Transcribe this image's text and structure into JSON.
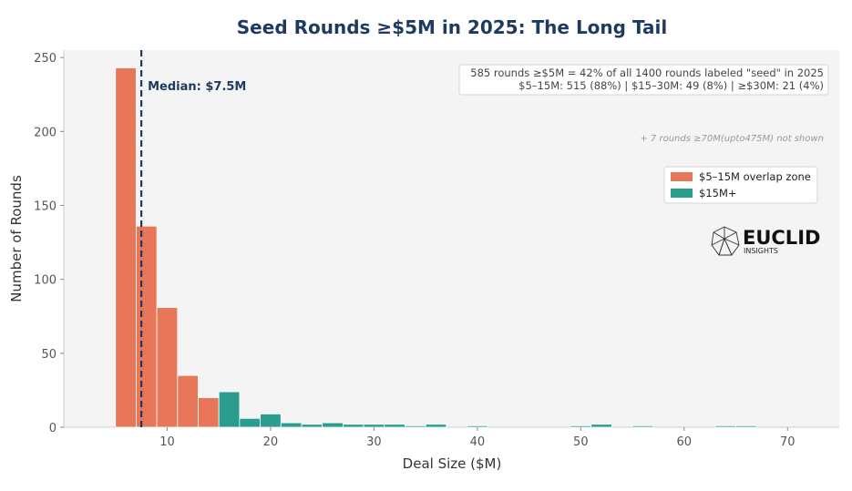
{
  "chart_data": {
    "type": "bar",
    "title": "Seed Rounds ≥$5M in 2025: The Long Tail",
    "xlabel": "Deal Size ($M)",
    "ylabel": "Number of Rounds",
    "xlim": [
      0,
      75
    ],
    "ylim": [
      0,
      255
    ],
    "xticks": [
      10,
      20,
      30,
      40,
      50,
      60,
      70
    ],
    "yticks": [
      0,
      50,
      100,
      150,
      200,
      250
    ],
    "bin_width": 2,
    "series": [
      {
        "name": "$5–15M overlap zone",
        "color": "#e8775a",
        "bins": [
          {
            "x0": 5,
            "count": 243
          },
          {
            "x0": 7,
            "count": 136
          },
          {
            "x0": 9,
            "count": 81
          },
          {
            "x0": 11,
            "count": 35
          },
          {
            "x0": 13,
            "count": 20
          }
        ]
      },
      {
        "name": "$15M+",
        "color": "#2a9d8f",
        "bins": [
          {
            "x0": 15,
            "count": 24
          },
          {
            "x0": 17,
            "count": 6
          },
          {
            "x0": 19,
            "count": 9
          },
          {
            "x0": 21,
            "count": 3
          },
          {
            "x0": 23,
            "count": 2
          },
          {
            "x0": 25,
            "count": 3
          },
          {
            "x0": 27,
            "count": 2
          },
          {
            "x0": 29,
            "count": 2
          },
          {
            "x0": 31,
            "count": 2
          },
          {
            "x0": 33,
            "count": 1
          },
          {
            "x0": 35,
            "count": 2
          },
          {
            "x0": 39,
            "count": 1
          },
          {
            "x0": 49,
            "count": 1
          },
          {
            "x0": 51,
            "count": 2
          },
          {
            "x0": 55,
            "count": 1
          },
          {
            "x0": 63,
            "count": 1
          },
          {
            "x0": 65,
            "count": 1
          }
        ]
      }
    ],
    "median": {
      "value": 7.5,
      "label": "Median: $7.5M",
      "color": "#1f3a5f"
    },
    "annotations": {
      "stats_line1": "585 rounds ≥$5M = 42% of all 1400 rounds labeled \"seed\" in 2025",
      "stats_line2": "$5–15M: 515 (88%)  |  $15–30M: 49 (8%)  |  ≥$30M: 21 (4%)",
      "not_shown_note": "+ 7 rounds ≥70M(upto475M) not shown"
    },
    "legend_position": "right",
    "grid": false,
    "background_color": "#f4f4f4"
  },
  "logo": {
    "main": "EUCLID",
    "sub": "INSIGHTS",
    "icon": "polyhedron-icon"
  }
}
